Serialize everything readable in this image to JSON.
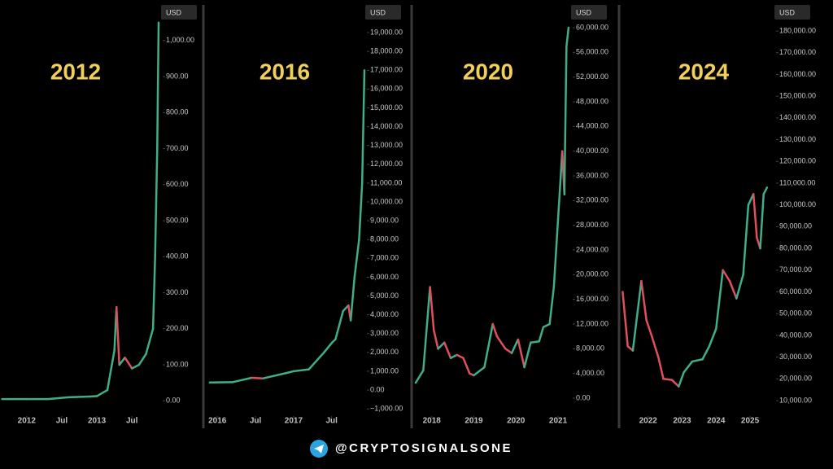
{
  "chart_data": [
    {
      "type": "candle-line",
      "title": "2012",
      "unit": "USD",
      "up_color": "#3fae8a",
      "down_color": "#e0505a",
      "x": [
        2011.65,
        2012.0,
        2012.3,
        2012.6,
        2012.9,
        2013.0,
        2013.15,
        2013.25,
        2013.28,
        2013.32,
        2013.4,
        2013.5,
        2013.6,
        2013.7,
        2013.8,
        2013.83,
        2013.86,
        2013.88
      ],
      "values": [
        5,
        5,
        5,
        10,
        12,
        13,
        30,
        140,
        260,
        100,
        120,
        90,
        100,
        130,
        200,
        400,
        700,
        1050
      ],
      "xlim": [
        2011.62,
        2013.88
      ],
      "xticks": [
        2012,
        {
          "value": 2012.5,
          "label": "Jul"
        },
        2013,
        {
          "value": 2013.5,
          "label": "Jul"
        }
      ],
      "ylim": [
        -40,
        1090
      ],
      "yticks": [
        {
          "value": 0,
          "label": "0.00"
        },
        {
          "value": 100,
          "label": "100.00"
        },
        {
          "value": 200,
          "label": "200.00"
        },
        {
          "value": 300,
          "label": "300.00"
        },
        {
          "value": 400,
          "label": "400.00"
        },
        {
          "value": 500,
          "label": "500.00"
        },
        {
          "value": 600,
          "label": "600.00"
        },
        {
          "value": 700,
          "label": "700.00"
        },
        {
          "value": 800,
          "label": "800.00"
        },
        {
          "value": 900,
          "label": "900.00"
        },
        {
          "value": 1000,
          "label": "1,000.00"
        }
      ]
    },
    {
      "type": "candle-line",
      "title": "2016",
      "unit": "USD",
      "up_color": "#3fae8a",
      "down_color": "#e0505a",
      "x": [
        2015.9,
        2016.2,
        2016.45,
        2016.6,
        2016.9,
        2017.0,
        2017.2,
        2017.4,
        2017.5,
        2017.55,
        2017.65,
        2017.72,
        2017.75,
        2017.8,
        2017.86,
        2017.9,
        2017.93
      ],
      "values": [
        400,
        420,
        650,
        620,
        900,
        1000,
        1100,
        2000,
        2500,
        2700,
        4200,
        4500,
        3700,
        6000,
        8000,
        11000,
        17000
      ],
      "xlim": [
        2015.88,
        2017.93
      ],
      "xticks": [
        2016,
        {
          "value": 2016.5,
          "label": "Jul"
        },
        2017,
        {
          "value": 2017.5,
          "label": "Jul"
        }
      ],
      "ylim": [
        -1340,
        20300
      ],
      "yticks": [
        {
          "value": -1000,
          "label": "−1,000.00"
        },
        {
          "value": 0,
          "label": "0.00"
        },
        {
          "value": 1000,
          "label": "1,000.00"
        },
        {
          "value": 2000,
          "label": "2,000.00"
        },
        {
          "value": 3000,
          "label": "3,000.00"
        },
        {
          "value": 4000,
          "label": "4,000.00"
        },
        {
          "value": 5000,
          "label": "5,000.00"
        },
        {
          "value": 6000,
          "label": "6,000.00"
        },
        {
          "value": 7000,
          "label": "7,000.00"
        },
        {
          "value": 8000,
          "label": "8,000.00"
        },
        {
          "value": 9000,
          "label": "9,000.00"
        },
        {
          "value": 10000,
          "label": "10,000.00"
        },
        {
          "value": 11000,
          "label": "11,000.00"
        },
        {
          "value": 12000,
          "label": "12,000.00"
        },
        {
          "value": 13000,
          "label": "13,000.00"
        },
        {
          "value": 14000,
          "label": "14,000.00"
        },
        {
          "value": 15000,
          "label": "15,000.00"
        },
        {
          "value": 16000,
          "label": "16,000.00"
        },
        {
          "value": 17000,
          "label": "17,000.00"
        },
        {
          "value": 18000,
          "label": "18,000.00"
        },
        {
          "value": 19000,
          "label": "19,000.00"
        }
      ]
    },
    {
      "type": "candle-line",
      "title": "2020",
      "unit": "USD",
      "up_color": "#3fae8a",
      "down_color": "#e0505a",
      "x": [
        2017.62,
        2017.8,
        2017.96,
        2018.05,
        2018.15,
        2018.3,
        2018.45,
        2018.6,
        2018.75,
        2018.9,
        2019.0,
        2019.25,
        2019.45,
        2019.55,
        2019.75,
        2019.9,
        2020.05,
        2020.2,
        2020.35,
        2020.55,
        2020.65,
        2020.8,
        2020.9,
        2021.0,
        2021.1,
        2021.15,
        2021.2,
        2021.25
      ],
      "values": [
        2500,
        4500,
        18000,
        11000,
        8000,
        9000,
        6500,
        7000,
        6500,
        4000,
        3700,
        5000,
        12000,
        10000,
        8000,
        7300,
        9500,
        5000,
        9000,
        9200,
        11500,
        12000,
        18000,
        29000,
        40000,
        33000,
        57000,
        60000
      ],
      "xlim": [
        2017.6,
        2021.27
      ],
      "xticks": [
        2018,
        2019,
        2020,
        2021
      ],
      "ylim": [
        -2770,
        63170
      ],
      "yticks": [
        {
          "value": 0,
          "label": "0.00"
        },
        {
          "value": 4000,
          "label": "4,000.00"
        },
        {
          "value": 8000,
          "label": "8,000.00"
        },
        {
          "value": 12000,
          "label": "12,000.00"
        },
        {
          "value": 16000,
          "label": "16,000.00"
        },
        {
          "value": 20000,
          "label": "20,000.00"
        },
        {
          "value": 24000,
          "label": "24,000.00"
        },
        {
          "value": 28000,
          "label": "28,000.00"
        },
        {
          "value": 32000,
          "label": "32,000.00"
        },
        {
          "value": 36000,
          "label": "36,000.00"
        },
        {
          "value": 40000,
          "label": "40,000.00"
        },
        {
          "value": 44000,
          "label": "44,000.00"
        },
        {
          "value": 48000,
          "label": "48,000.00"
        },
        {
          "value": 52000,
          "label": "52,000.00"
        },
        {
          "value": 56000,
          "label": "56,000.00"
        },
        {
          "value": 60000,
          "label": "60,000.00"
        }
      ]
    },
    {
      "type": "candle-line",
      "title": "2024",
      "unit": "USD",
      "up_color": "#3fae8a",
      "down_color": "#e0505a",
      "x": [
        2021.25,
        2021.4,
        2021.55,
        2021.8,
        2021.95,
        2022.1,
        2022.3,
        2022.45,
        2022.7,
        2022.9,
        2023.05,
        2023.3,
        2023.6,
        2023.8,
        2024.0,
        2024.2,
        2024.4,
        2024.6,
        2024.8,
        2024.95,
        2025.1,
        2025.2,
        2025.3,
        2025.4,
        2025.5
      ],
      "values": [
        60000,
        35000,
        33000,
        65000,
        47000,
        40000,
        30000,
        20000,
        19500,
        16500,
        23000,
        28000,
        29000,
        35000,
        43000,
        70000,
        65000,
        57000,
        68000,
        100000,
        105000,
        85000,
        80000,
        105000,
        108000
      ],
      "xlim": [
        2021.24,
        2025.55
      ],
      "xticks": [
        2022,
        2023,
        2024,
        2025
      ],
      "ylim": [
        3260,
        190500
      ],
      "yticks": [
        {
          "value": 10000,
          "label": "10,000.00"
        },
        {
          "value": 20000,
          "label": "20,000.00"
        },
        {
          "value": 30000,
          "label": "30,000.00"
        },
        {
          "value": 40000,
          "label": "40,000.00"
        },
        {
          "value": 50000,
          "label": "50,000.00"
        },
        {
          "value": 60000,
          "label": "60,000.00"
        },
        {
          "value": 70000,
          "label": "70,000.00"
        },
        {
          "value": 80000,
          "label": "80,000.00"
        },
        {
          "value": 90000,
          "label": "90,000.00"
        },
        {
          "value": 100000,
          "label": "100,000.00"
        },
        {
          "value": 110000,
          "label": "110,000.00"
        },
        {
          "value": 120000,
          "label": "120,000.00"
        },
        {
          "value": 130000,
          "label": "130,000.00"
        },
        {
          "value": 140000,
          "label": "140,000.00"
        },
        {
          "value": 150000,
          "label": "150,000.00"
        },
        {
          "value": 160000,
          "label": "160,000.00"
        },
        {
          "value": 170000,
          "label": "170,000.00"
        },
        {
          "value": 180000,
          "label": "180,000.00"
        }
      ]
    }
  ],
  "footer": {
    "handle": "@CRYPTOSIGNALSONE"
  }
}
